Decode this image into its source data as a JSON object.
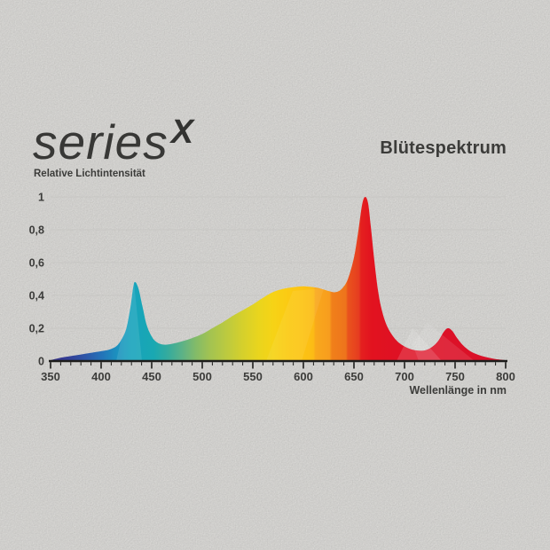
{
  "logo": {
    "brand": "series",
    "variant": "X"
  },
  "title": "Blütespektrum",
  "colors": {
    "background": "#eae9e6",
    "text": "#3c3c3a",
    "axis": "#1d1d1b",
    "grid": "#c8c7c4"
  },
  "chart_data": {
    "type": "area",
    "title": "Blütespektrum",
    "ylabel": "Relative Lichtintensität",
    "xlabel": "Wellenlänge in nm",
    "xlim": [
      350,
      800
    ],
    "ylim": [
      0,
      1
    ],
    "grid": true,
    "legend": false,
    "xticks": {
      "major_step": 50,
      "minor_step": 10,
      "labels": [
        "350",
        "400",
        "450",
        "500",
        "550",
        "600",
        "650",
        "700",
        "750",
        "800"
      ],
      "values": [
        350,
        400,
        450,
        500,
        550,
        600,
        650,
        700,
        750,
        800
      ]
    },
    "yticks": {
      "labels": [
        "0",
        "0,2",
        "0,4",
        "0,6",
        "0,8",
        "1"
      ],
      "values": [
        0,
        0.2,
        0.4,
        0.6,
        0.8,
        1
      ]
    },
    "peaks": [
      {
        "nm": 434,
        "intensity": 0.48
      },
      {
        "nm": 661,
        "intensity": 1.0
      },
      {
        "nm": 742,
        "intensity": 0.2
      }
    ],
    "points": [
      [
        350,
        0.005
      ],
      [
        360,
        0.02
      ],
      [
        370,
        0.03
      ],
      [
        380,
        0.04
      ],
      [
        390,
        0.05
      ],
      [
        400,
        0.06
      ],
      [
        408,
        0.07
      ],
      [
        415,
        0.09
      ],
      [
        420,
        0.13
      ],
      [
        425,
        0.2
      ],
      [
        429,
        0.33
      ],
      [
        432,
        0.46
      ],
      [
        434,
        0.48
      ],
      [
        437,
        0.44
      ],
      [
        441,
        0.33
      ],
      [
        445,
        0.22
      ],
      [
        450,
        0.15
      ],
      [
        455,
        0.115
      ],
      [
        462,
        0.1
      ],
      [
        470,
        0.105
      ],
      [
        480,
        0.12
      ],
      [
        490,
        0.14
      ],
      [
        500,
        0.165
      ],
      [
        510,
        0.2
      ],
      [
        520,
        0.235
      ],
      [
        530,
        0.275
      ],
      [
        540,
        0.31
      ],
      [
        550,
        0.345
      ],
      [
        560,
        0.385
      ],
      [
        570,
        0.42
      ],
      [
        580,
        0.44
      ],
      [
        590,
        0.45
      ],
      [
        600,
        0.455
      ],
      [
        610,
        0.45
      ],
      [
        618,
        0.44
      ],
      [
        626,
        0.425
      ],
      [
        632,
        0.42
      ],
      [
        638,
        0.44
      ],
      [
        644,
        0.5
      ],
      [
        650,
        0.63
      ],
      [
        654,
        0.78
      ],
      [
        658,
        0.95
      ],
      [
        661,
        1.0
      ],
      [
        664,
        0.96
      ],
      [
        667,
        0.8
      ],
      [
        670,
        0.62
      ],
      [
        674,
        0.42
      ],
      [
        678,
        0.3
      ],
      [
        683,
        0.21
      ],
      [
        690,
        0.14
      ],
      [
        697,
        0.1
      ],
      [
        705,
        0.075
      ],
      [
        712,
        0.065
      ],
      [
        720,
        0.065
      ],
      [
        727,
        0.085
      ],
      [
        733,
        0.12
      ],
      [
        739,
        0.18
      ],
      [
        743,
        0.2
      ],
      [
        747,
        0.185
      ],
      [
        752,
        0.14
      ],
      [
        758,
        0.095
      ],
      [
        765,
        0.06
      ],
      [
        772,
        0.04
      ],
      [
        780,
        0.025
      ],
      [
        790,
        0.012
      ],
      [
        800,
        0.005
      ]
    ],
    "gradient_stops": [
      {
        "nm": 350,
        "color": "#38318a"
      },
      {
        "nm": 368,
        "color": "#333f97"
      },
      {
        "nm": 385,
        "color": "#2d57a8"
      },
      {
        "nm": 400,
        "color": "#2472b8"
      },
      {
        "nm": 415,
        "color": "#1c90bf"
      },
      {
        "nm": 428,
        "color": "#17a2bd"
      },
      {
        "nm": 452,
        "color": "#19a8b2"
      },
      {
        "nm": 466,
        "color": "#35ab9d"
      },
      {
        "nm": 480,
        "color": "#5cb287"
      },
      {
        "nm": 494,
        "color": "#84bb68"
      },
      {
        "nm": 508,
        "color": "#a3c351"
      },
      {
        "nm": 524,
        "color": "#bcca3f"
      },
      {
        "nm": 540,
        "color": "#d5d02c"
      },
      {
        "nm": 556,
        "color": "#ead51d"
      },
      {
        "nm": 570,
        "color": "#f6d316"
      },
      {
        "nm": 584,
        "color": "#fbcb13"
      },
      {
        "nm": 598,
        "color": "#fcc414"
      },
      {
        "nm": 610,
        "color": "#fcbc15"
      },
      {
        "nm": 612,
        "color": "#f9a81c"
      },
      {
        "nm": 626,
        "color": "#f79d1e"
      },
      {
        "nm": 628,
        "color": "#f0801a"
      },
      {
        "nm": 642,
        "color": "#ee741c"
      },
      {
        "nm": 644,
        "color": "#e9531d"
      },
      {
        "nm": 655,
        "color": "#e63c20"
      },
      {
        "nm": 657,
        "color": "#e4201f"
      },
      {
        "nm": 668,
        "color": "#e2121f"
      },
      {
        "nm": 690,
        "color": "#df1123"
      },
      {
        "nm": 800,
        "color": "#d9112b"
      }
    ]
  }
}
